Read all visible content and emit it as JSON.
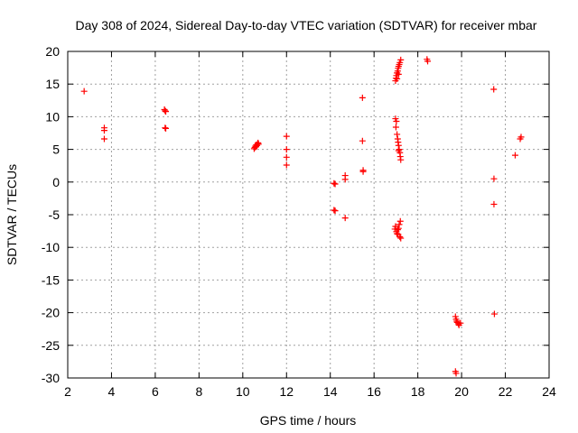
{
  "chart_data": {
    "type": "scatter",
    "title": "Day 308 of 2024, Sidereal Day-to-day VTEC variation (SDTVAR) for receiver mbar",
    "xlabel": "GPS time / hours",
    "ylabel": "SDTVAR / TECUs",
    "xlim": [
      2,
      24
    ],
    "ylim": [
      -30,
      20
    ],
    "xticks": [
      2,
      4,
      6,
      8,
      10,
      12,
      14,
      16,
      18,
      20,
      22,
      24
    ],
    "yticks": [
      -30,
      -25,
      -20,
      -15,
      -10,
      -5,
      0,
      5,
      10,
      15,
      20
    ],
    "grid": true,
    "marker": "+",
    "color": "#ff0000",
    "points": [
      [
        2.75,
        13.9
      ],
      [
        3.67,
        8.3
      ],
      [
        3.67,
        7.9
      ],
      [
        3.67,
        6.6
      ],
      [
        6.42,
        11.1
      ],
      [
        6.45,
        10.9
      ],
      [
        6.48,
        10.8
      ],
      [
        6.45,
        8.3
      ],
      [
        6.48,
        8.2
      ],
      [
        10.52,
        5.1
      ],
      [
        10.55,
        5.3
      ],
      [
        10.58,
        5.5
      ],
      [
        10.6,
        5.4
      ],
      [
        10.62,
        5.7
      ],
      [
        10.65,
        5.6
      ],
      [
        10.68,
        5.9
      ],
      [
        10.7,
        6.0
      ],
      [
        10.72,
        5.8
      ],
      [
        12.0,
        7.0
      ],
      [
        12.0,
        5.0
      ],
      [
        12.0,
        3.8
      ],
      [
        12.0,
        2.6
      ],
      [
        14.17,
        -0.2
      ],
      [
        14.22,
        -0.3
      ],
      [
        14.17,
        -4.3
      ],
      [
        14.22,
        -4.4
      ],
      [
        14.68,
        1.0
      ],
      [
        14.68,
        0.4
      ],
      [
        14.68,
        -5.5
      ],
      [
        15.47,
        12.9
      ],
      [
        15.47,
        6.3
      ],
      [
        15.5,
        1.8
      ],
      [
        15.5,
        1.6
      ],
      [
        16.98,
        15.5
      ],
      [
        17.0,
        15.9
      ],
      [
        17.02,
        16.3
      ],
      [
        17.05,
        16.7
      ],
      [
        17.08,
        17.0
      ],
      [
        17.1,
        17.4
      ],
      [
        17.12,
        17.7
      ],
      [
        17.15,
        18.0
      ],
      [
        17.18,
        18.3
      ],
      [
        17.22,
        18.7
      ],
      [
        17.12,
        16.5
      ],
      [
        17.05,
        15.8
      ],
      [
        16.98,
        9.7
      ],
      [
        17.02,
        9.3
      ],
      [
        17.0,
        8.4
      ],
      [
        17.05,
        7.3
      ],
      [
        17.08,
        6.6
      ],
      [
        17.1,
        6.1
      ],
      [
        17.12,
        5.6
      ],
      [
        17.15,
        5.0
      ],
      [
        17.18,
        4.5
      ],
      [
        17.2,
        3.9
      ],
      [
        17.22,
        3.4
      ],
      [
        17.12,
        4.8
      ],
      [
        16.95,
        -7.2
      ],
      [
        16.98,
        -6.8
      ],
      [
        17.02,
        -7.6
      ],
      [
        17.05,
        -7.9
      ],
      [
        17.08,
        -7.3
      ],
      [
        17.1,
        -8.0
      ],
      [
        17.12,
        -7.1
      ],
      [
        17.15,
        -6.5
      ],
      [
        17.18,
        -8.4
      ],
      [
        17.2,
        -6.0
      ],
      [
        17.22,
        -8.6
      ],
      [
        18.42,
        18.8
      ],
      [
        18.45,
        18.5
      ],
      [
        19.72,
        -20.6
      ],
      [
        19.75,
        -21.0
      ],
      [
        19.78,
        -21.3
      ],
      [
        19.8,
        -21.5
      ],
      [
        19.85,
        -21.7
      ],
      [
        19.88,
        -21.9
      ],
      [
        19.95,
        -21.6
      ],
      [
        19.72,
        -29.0
      ],
      [
        19.75,
        -29.3
      ],
      [
        21.47,
        14.2
      ],
      [
        21.48,
        0.5
      ],
      [
        21.48,
        -3.4
      ],
      [
        21.5,
        -20.2
      ],
      [
        22.45,
        4.1
      ],
      [
        22.68,
        6.6
      ],
      [
        22.72,
        6.9
      ]
    ]
  }
}
